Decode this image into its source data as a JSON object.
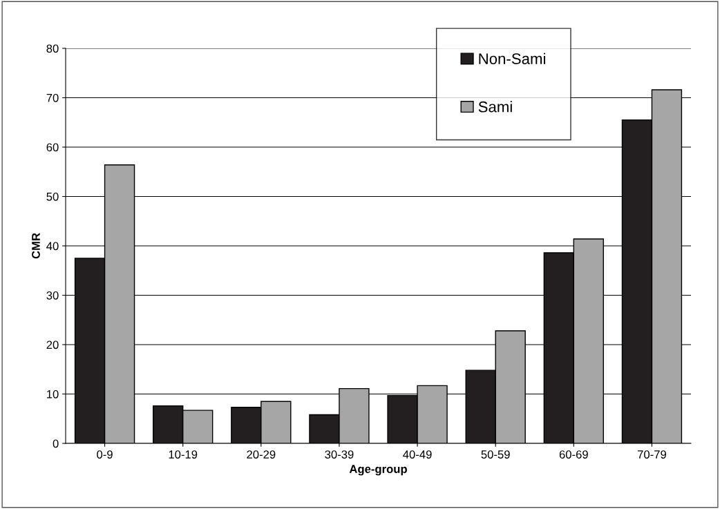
{
  "chart_data": {
    "type": "bar",
    "xlabel": "Age-group",
    "ylabel": "CMR",
    "categories": [
      "0-9",
      "10-19",
      "20-29",
      "30-39",
      "40-49",
      "50-59",
      "60-69",
      "70-79"
    ],
    "series": [
      {
        "name": "Non-Sami",
        "color": "#231f20",
        "values": [
          37.5,
          7.6,
          7.3,
          5.8,
          9.7,
          14.8,
          38.6,
          65.5
        ]
      },
      {
        "name": "Sami",
        "color": "#a6a6a6",
        "values": [
          56.4,
          6.7,
          8.5,
          11.1,
          11.7,
          22.8,
          41.4,
          71.6
        ]
      }
    ],
    "ylim": [
      0,
      80
    ],
    "yticks": [
      0,
      10,
      20,
      30,
      40,
      50,
      60,
      70,
      80
    ],
    "grid": "y",
    "legend": "top right"
  }
}
